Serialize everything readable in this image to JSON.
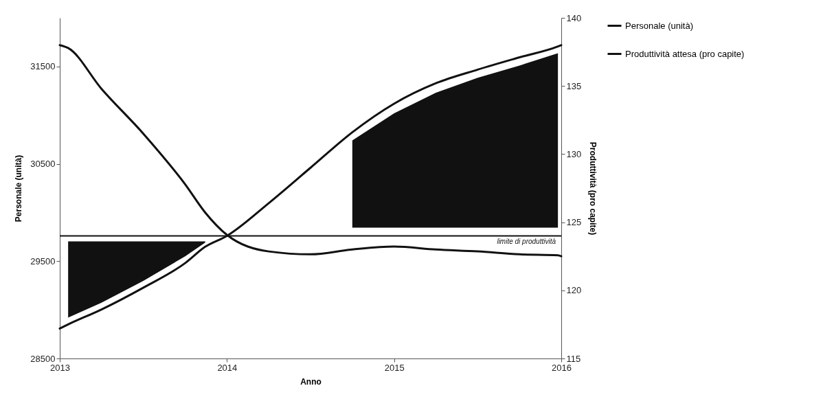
{
  "chart_data": {
    "type": "line",
    "xlabel": "Anno",
    "ylabel": "Personale (unità)",
    "y2label": "Produttività (pro capite)",
    "x": [
      2013,
      2013.05,
      2013.25,
      2013.5,
      2013.75,
      2013.87,
      2014,
      2014.25,
      2014.5,
      2014.75,
      2015,
      2015.25,
      2015.5,
      2015.75,
      2015.98,
      2016
    ],
    "series": [
      {
        "name": "Personale (unità)",
        "color": "#111111",
        "values": [
          31720,
          31690,
          31270,
          30810,
          30290,
          30000,
          29770,
          29600,
          29570,
          29620,
          29650,
          29620,
          29600,
          29570,
          29560,
          29550
        ]
      },
      {
        "name": "Produttività attesa (pro capite)",
        "color": "#111111",
        "axis": "y2",
        "values": [
          117.2,
          117.5,
          118.6,
          120.2,
          122.0,
          123.2,
          124.0,
          126.4,
          129.0,
          131.6,
          133.7,
          135.2,
          136.2,
          137.1,
          137.9,
          138.0
        ],
        "lower": [
          null,
          118.0,
          119.1,
          120.7,
          122.5,
          123.5,
          null,
          null,
          null,
          124.6,
          124.6,
          124.6,
          124.6,
          124.6,
          124.6,
          null
        ],
        "upper": [
          null,
          123.6,
          123.6,
          123.6,
          123.6,
          123.6,
          null,
          null,
          null,
          131.0,
          133.0,
          134.5,
          135.6,
          136.5,
          137.4,
          null
        ]
      }
    ],
    "ref_lines": [
      {
        "axis": "y2",
        "value": 124,
        "label": "limite di produttività",
        "color": "#111111"
      }
    ],
    "xlim": [
      2013,
      2016
    ],
    "xticks": [
      2013,
      2014,
      2015,
      2016
    ],
    "ylim": [
      28500,
      32000
    ],
    "yticks": [
      28500,
      29500,
      30500,
      31500
    ],
    "y2lim": [
      115,
      140
    ],
    "y2ticks": [
      115,
      120,
      125,
      130,
      135,
      140
    ],
    "grid": false,
    "legend": "right",
    "marker": "none",
    "line_style": "solid"
  }
}
